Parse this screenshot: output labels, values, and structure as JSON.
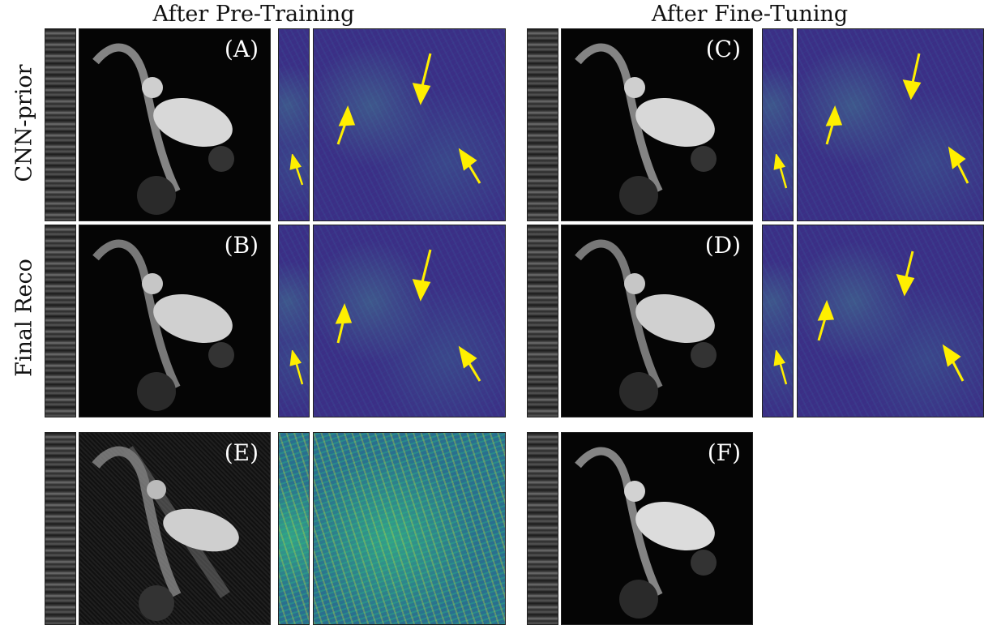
{
  "columns": {
    "left": "After Pre-Training",
    "right": "After Fine-Tuning"
  },
  "rows": {
    "top": "CNN-prior",
    "middle": "Final Reco"
  },
  "panels": {
    "a": "(A)",
    "b": "(B)",
    "c": "(C)",
    "d": "(D)",
    "e": "(E)",
    "f": "(F)"
  },
  "colors": {
    "arrow": "#ffef00",
    "error_base": "#3b2f86",
    "background": "#ffffff"
  },
  "icons": {
    "arrow": "arrow-icon"
  }
}
